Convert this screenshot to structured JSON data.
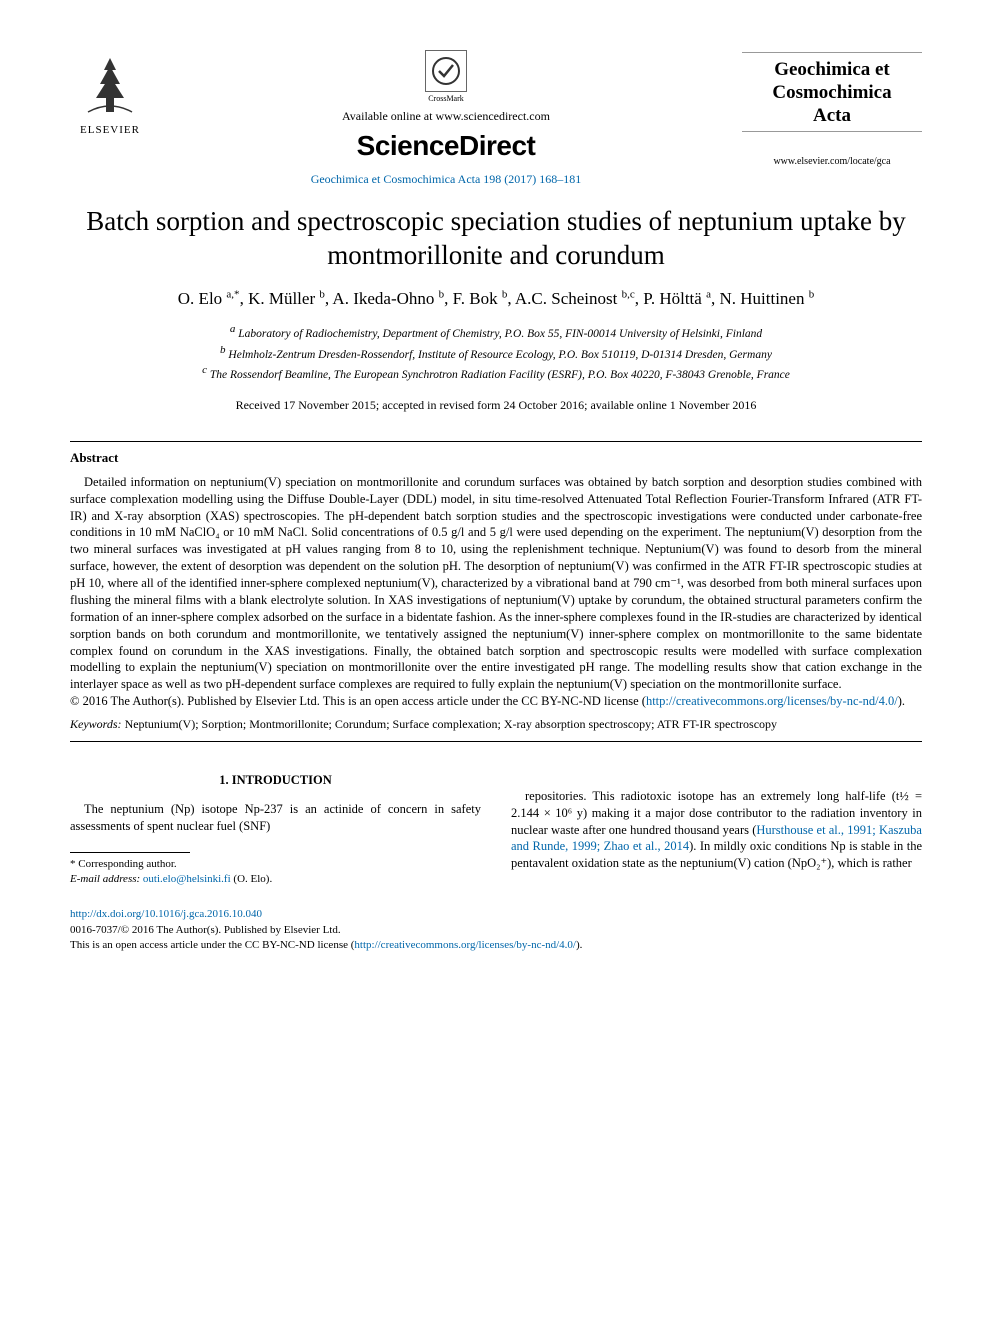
{
  "header": {
    "elsevier_label": "ELSEVIER",
    "crossmark_label": "CrossMark",
    "available_line": "Available online at www.sciencedirect.com",
    "sciencedirect": "ScienceDirect",
    "journal_ref": "Geochimica et Cosmochimica Acta 198 (2017) 168–181",
    "journal_name_1": "Geochimica et",
    "journal_name_2": "Cosmochimica",
    "journal_name_3": "Acta",
    "journal_url": "www.elsevier.com/locate/gca"
  },
  "title": "Batch sorption and spectroscopic speciation studies of neptunium uptake by montmorillonite and corundum",
  "authors_html": "O. Elo <span class='sup'>a,*</span>, K. Müller <span class='sup'>b</span>, A. Ikeda-Ohno <span class='sup'>b</span>, F. Bok <span class='sup'>b</span>, A.C. Scheinost <span class='sup'>b,c</span>, P. Hölttä <span class='sup'>a</span>, N. Huittinen <span class='sup'>b</span>",
  "affiliations": {
    "a": "Laboratory of Radiochemistry, Department of Chemistry, P.O. Box 55, FIN-00014 University of Helsinki, Finland",
    "b": "Helmholz-Zentrum Dresden-Rossendorf, Institute of Resource Ecology, P.O. Box 510119, D-01314 Dresden, Germany",
    "c": "The Rossendorf Beamline, The European Synchrotron Radiation Facility (ESRF), P.O. Box 40220, F-38043 Grenoble, France"
  },
  "dates": "Received 17 November 2015; accepted in revised form 24 October 2016; available online 1 November 2016",
  "abstract": {
    "heading": "Abstract",
    "body": "Detailed information on neptunium(V) speciation on montmorillonite and corundum surfaces was obtained by batch sorption and desorption studies combined with surface complexation modelling using the Diffuse Double-Layer (DDL) model, in situ time-resolved Attenuated Total Reflection Fourier-Transform Infrared (ATR FT-IR) and X-ray absorption (XAS) spectroscopies. The pH-dependent batch sorption studies and the spectroscopic investigations were conducted under carbonate-free conditions in 10 mM NaClO₄ or 10 mM NaCl. Solid concentrations of 0.5 g/l and 5 g/l were used depending on the experiment. The neptunium(V) desorption from the two mineral surfaces was investigated at pH values ranging from 8 to 10, using the replenishment technique. Neptunium(V) was found to desorb from the mineral surface, however, the extent of desorption was dependent on the solution pH. The desorption of neptunium(V) was confirmed in the ATR FT-IR spectroscopic studies at pH 10, where all of the identified inner-sphere complexed neptunium(V), characterized by a vibrational band at 790 cm⁻¹, was desorbed from both mineral surfaces upon flushing the mineral films with a blank electrolyte solution. In XAS investigations of neptunium(V) uptake by corundum, the obtained structural parameters confirm the formation of an inner-sphere complex adsorbed on the surface in a bidentate fashion. As the inner-sphere complexes found in the IR-studies are characterized by identical sorption bands on both corundum and montmorillonite, we tentatively assigned the neptunium(V) inner-sphere complex on montmorillonite to the same bidentate complex found on corundum in the XAS investigations. Finally, the obtained batch sorption and spectroscopic results were modelled with surface complexation modelling to explain the neptunium(V) speciation on montmorillonite over the entire investigated pH range. The modelling results show that cation exchange in the interlayer space as well as two pH-dependent surface complexes are required to fully explain the neptunium(V) speciation on the montmorillonite surface.",
    "copyright": "© 2016 The Author(s). Published by Elsevier Ltd. This is an open access article under the CC BY-NC-ND license (",
    "license_url": "http://creativecommons.org/licenses/by-nc-nd/4.0/",
    "copyright_close": ")."
  },
  "keywords": {
    "label": "Keywords:",
    "text": "Neptunium(V); Sorption; Montmorillonite; Corundum; Surface complexation; X-ray absorption spectroscopy; ATR FT-IR spectroscopy"
  },
  "section1": {
    "heading": "1. INTRODUCTION",
    "col1": "The neptunium (Np) isotope Np-237 is an actinide of concern in safety assessments of spent nuclear fuel (SNF)",
    "col2_part1": "repositories. This radiotoxic isotope has an extremely long half-life (t½ = 2.144 × 10⁶ y) making it a major dose contributor to the radiation inventory in nuclear waste after one hundred thousand years (",
    "col2_ref": "Hursthouse et al., 1991; Kaszuba and Runde, 1999; Zhao et al., 2014",
    "col2_part2": "). In mildly oxic conditions Np is stable in the pentavalent oxidation state as the neptunium(V) cation (NpO₂⁺), which is rather"
  },
  "footnote": {
    "corr": "* Corresponding author.",
    "email_label": "E-mail address:",
    "email": "outi.elo@helsinki.fi",
    "email_paren": "(O. Elo)."
  },
  "footer": {
    "doi": "http://dx.doi.org/10.1016/j.gca.2016.10.040",
    "line1": "0016-7037/© 2016 The Author(s). Published by Elsevier Ltd.",
    "line2_a": "This is an open access article under the CC BY-NC-ND license (",
    "line2_url": "http://creativecommons.org/licenses/by-nc-nd/4.0/",
    "line2_b": ")."
  },
  "colors": {
    "link": "#0066aa",
    "text": "#000000",
    "rule": "#999999"
  }
}
